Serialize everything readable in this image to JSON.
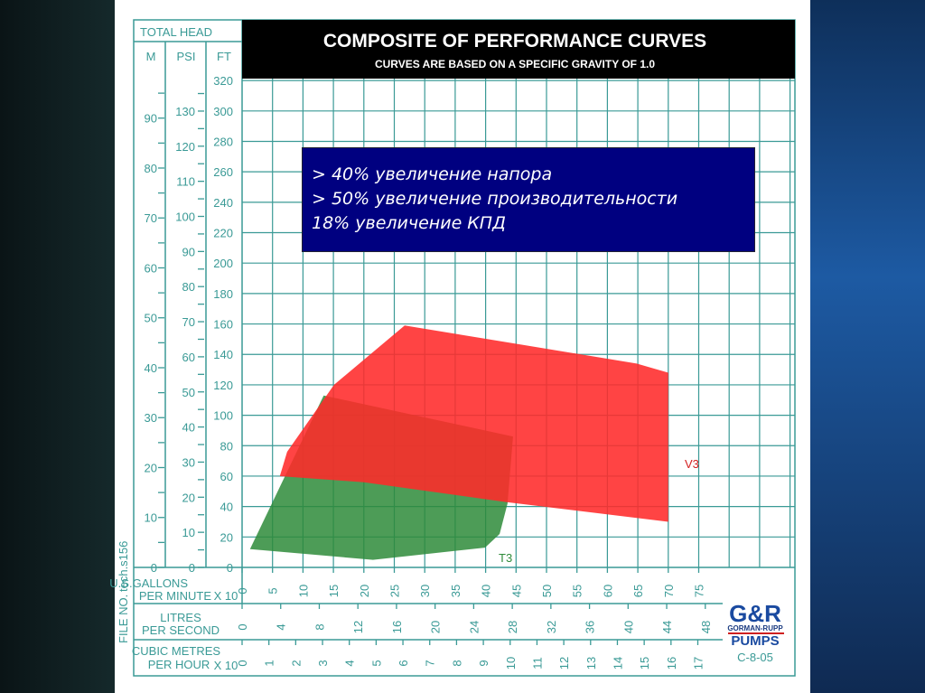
{
  "header": {
    "total_head": "TOTAL HEAD",
    "col_m": "M",
    "col_psi": "PSI",
    "col_ft": "FT",
    "title": "COMPOSITE OF PERFORMANCE CURVES",
    "subtitle": "CURVES ARE BASED ON A SPECIFIC GRAVITY OF 1.0"
  },
  "info": {
    "lines": [
      "> 40% увеличение напора",
      "> 50% увеличение производительности",
      "18% увеличение КПД"
    ]
  },
  "axes": {
    "m_labels": [
      0,
      10,
      20,
      30,
      40,
      50,
      60,
      70,
      80,
      90
    ],
    "psi_labels": [
      0,
      10,
      20,
      30,
      40,
      50,
      60,
      70,
      80,
      90,
      100,
      110,
      120,
      130
    ],
    "ft_labels": [
      0,
      20,
      40,
      60,
      80,
      100,
      120,
      140,
      160,
      180,
      200,
      220,
      240,
      260,
      280,
      300,
      320
    ],
    "gpm_label1": "U.S.GALLONS",
    "gpm_label2": "PER MINUTE",
    "gpm_mult": "X 10",
    "gpm_labels": [
      0,
      5,
      10,
      15,
      20,
      25,
      30,
      35,
      40,
      45,
      50,
      55,
      60,
      65,
      70,
      75
    ],
    "lps_label1": "LITRES",
    "lps_label2": "PER SECOND",
    "lps_labels": [
      0,
      4,
      8,
      12,
      16,
      20,
      24,
      28,
      32,
      36,
      40,
      44,
      48
    ],
    "cmh_label1": "CUBIC METRES",
    "cmh_label2": "PER HOUR",
    "cmh_mult": "X 10",
    "cmh_labels": [
      0,
      1,
      2,
      3,
      4,
      5,
      6,
      7,
      8,
      9,
      10,
      11,
      12,
      13,
      14,
      15,
      16,
      17
    ]
  },
  "side": {
    "tech": "tech.s156",
    "file": "FILE NO."
  },
  "logo": {
    "mark": "G&R",
    "name": "GORMAN-RUPP",
    "pumps": "PUMPS",
    "code": "C-8-05"
  },
  "colors": {
    "v3": "#ff2a2a",
    "t3": "#2e8b3a",
    "grid": "#3a9a96"
  },
  "chart_data": {
    "type": "area",
    "title": "COMPOSITE OF PERFORMANCE CURVES",
    "xlabel": "U.S.GALLONS PER MINUTE X 10",
    "ylabel": "TOTAL HEAD FT",
    "xlim": [
      0,
      90
    ],
    "ylim": [
      0,
      320
    ],
    "grid": true,
    "series": [
      {
        "name": "V3",
        "points": [
          [
            6.2,
            60
          ],
          [
            7.4,
            76
          ],
          [
            15.1,
            120
          ],
          [
            26.7,
            159
          ],
          [
            64.8,
            134
          ],
          [
            70,
            128
          ],
          [
            70,
            30
          ],
          [
            43.3,
            43
          ],
          [
            20,
            56
          ]
        ]
      },
      {
        "name": "T3",
        "points": [
          [
            1.3,
            12
          ],
          [
            13.4,
            113
          ],
          [
            44.5,
            86
          ],
          [
            43.6,
            42
          ],
          [
            42.3,
            22
          ],
          [
            39.9,
            13
          ],
          [
            21.5,
            5
          ]
        ]
      }
    ]
  }
}
